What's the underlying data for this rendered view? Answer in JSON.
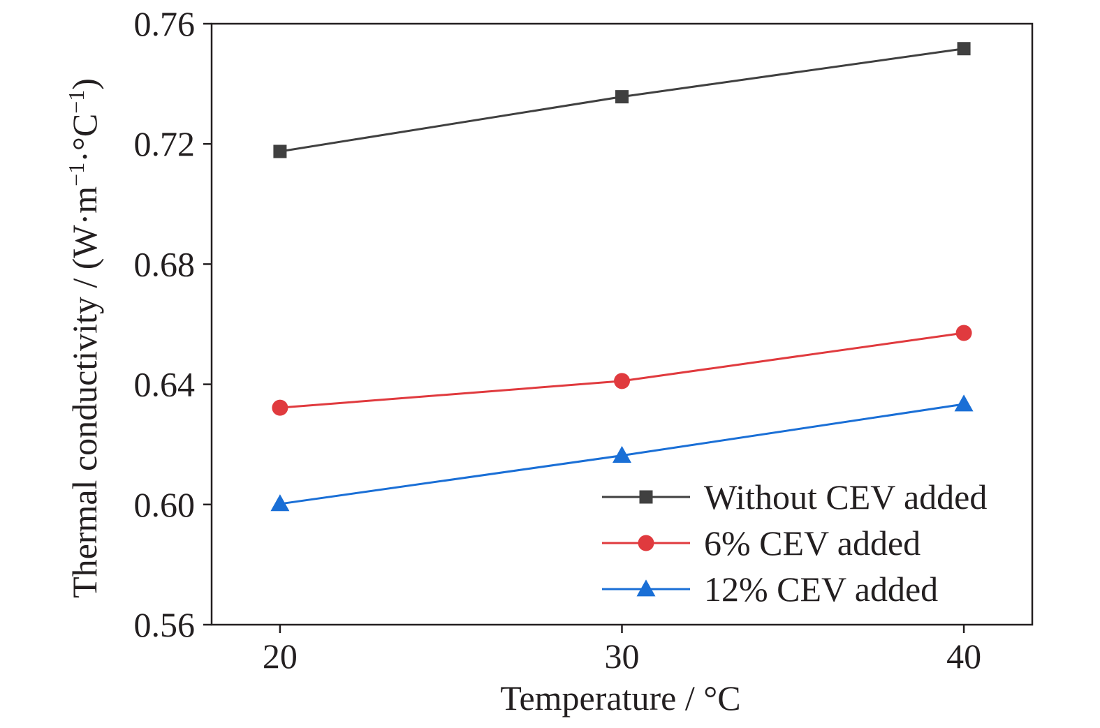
{
  "chart_data": {
    "type": "line",
    "x": [
      20,
      30,
      40
    ],
    "xlabel": "Temperature / °C",
    "ylabel": "Thermal conductivity / (W·m−1·°C−1)",
    "xlim": [
      18,
      42
    ],
    "ylim": [
      0.56,
      0.76
    ],
    "xticks": [
      20,
      30,
      40
    ],
    "xtick_labels": [
      "20",
      "30",
      "40"
    ],
    "yticks": [
      0.56,
      0.6,
      0.64,
      0.68,
      0.72,
      0.76
    ],
    "ytick_labels": [
      "0.56",
      "0.60",
      "0.64",
      "0.68",
      "0.72",
      "0.76"
    ],
    "grid": false,
    "legend_position": "bottom-right",
    "series": [
      {
        "name": "Without CEV added",
        "values": [
          0.7175,
          0.7357,
          0.7517
        ],
        "color": "#404040",
        "marker": "square"
      },
      {
        "name": "6% CEV added",
        "values": [
          0.6322,
          0.6411,
          0.6571
        ],
        "color": "#e03a3e",
        "marker": "circle"
      },
      {
        "name": "12% CEV added",
        "values": [
          0.6002,
          0.6163,
          0.6334
        ],
        "color": "#1a6fd6",
        "marker": "triangle"
      }
    ]
  }
}
